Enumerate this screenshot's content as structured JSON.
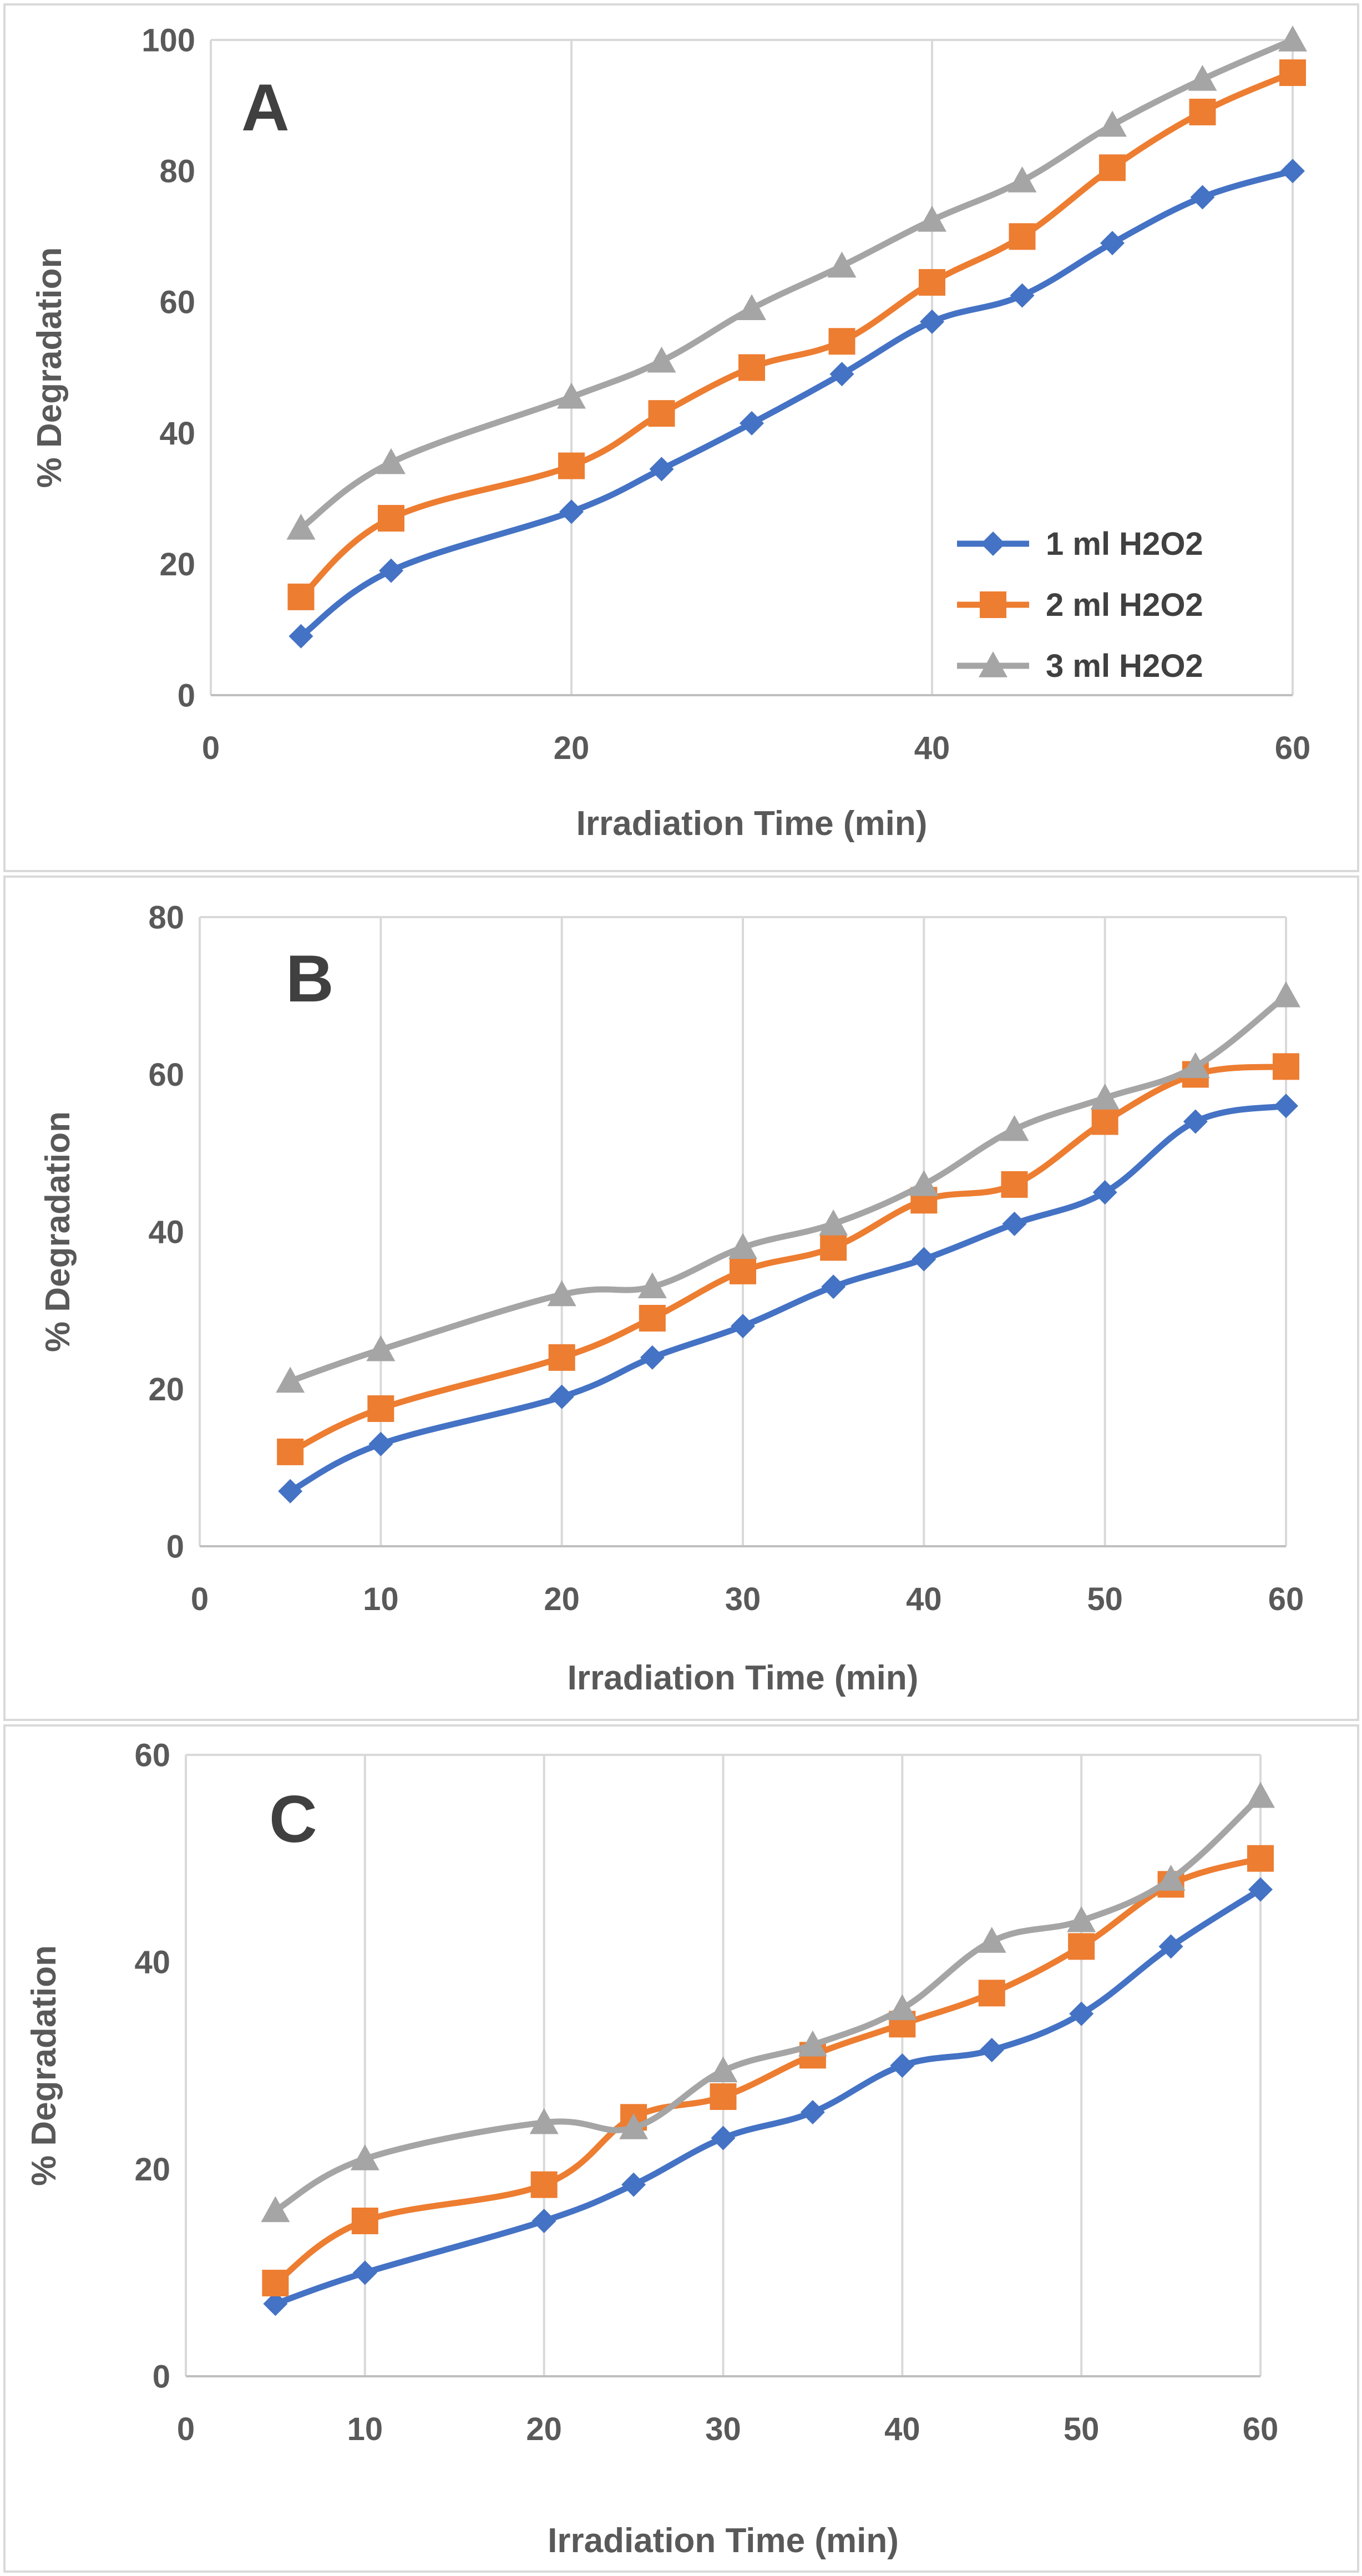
{
  "chart_data": [
    {
      "type": "line",
      "title": "A",
      "xlabel": "Irradiation Time (min)",
      "ylabel": "% Degradation",
      "xlim": [
        0,
        60
      ],
      "ylim": [
        0,
        100
      ],
      "xticks": [
        0,
        20,
        40,
        60
      ],
      "yticks": [
        0,
        20,
        40,
        60,
        80,
        100
      ],
      "x_gridlines": [
        0,
        20,
        40,
        60
      ],
      "legend": "bottom-right",
      "series": [
        {
          "name": "1 ml H2O2",
          "color": "#4472C4",
          "marker": "diamond",
          "x": [
            5,
            10,
            20,
            25,
            30,
            35,
            40,
            45,
            50,
            55,
            60
          ],
          "values": [
            9,
            19,
            28,
            34.5,
            41.5,
            49,
            57,
            61,
            69,
            76,
            80
          ]
        },
        {
          "name": "2 ml H2O2",
          "color": "#ED7D31",
          "marker": "square",
          "x": [
            5,
            10,
            20,
            25,
            30,
            35,
            40,
            45,
            50,
            55,
            60
          ],
          "values": [
            15,
            27,
            35,
            43,
            50,
            54,
            63,
            70,
            80.5,
            89,
            95
          ]
        },
        {
          "name": "3 ml H2O2",
          "color": "#A5A5A5",
          "marker": "triangle",
          "x": [
            5,
            10,
            20,
            25,
            30,
            35,
            40,
            45,
            50,
            55,
            60
          ],
          "values": [
            25.5,
            35.5,
            45.5,
            51,
            59,
            65.5,
            72.5,
            78.5,
            87,
            94,
            100
          ]
        }
      ]
    },
    {
      "type": "line",
      "title": "B",
      "xlabel": "Irradiation Time (min)",
      "ylabel": "% Degradation",
      "xlim": [
        0,
        60
      ],
      "ylim": [
        0,
        80
      ],
      "xticks": [
        0,
        10,
        20,
        30,
        40,
        50,
        60
      ],
      "yticks": [
        0,
        20,
        40,
        60,
        80
      ],
      "x_gridlines": [
        0,
        10,
        20,
        30,
        40,
        50,
        60
      ],
      "series": [
        {
          "name": "1 ml H2O2",
          "color": "#4472C4",
          "marker": "diamond",
          "x": [
            5,
            10,
            20,
            25,
            30,
            35,
            40,
            45,
            50,
            55,
            60
          ],
          "values": [
            7,
            13,
            19,
            24,
            28,
            33,
            36.5,
            41,
            45,
            54,
            56
          ]
        },
        {
          "name": "2 ml H2O2",
          "color": "#ED7D31",
          "marker": "square",
          "x": [
            5,
            10,
            20,
            25,
            30,
            35,
            40,
            45,
            50,
            55,
            60
          ],
          "values": [
            12,
            17.5,
            24,
            29,
            35,
            38,
            44,
            46,
            54,
            60,
            61
          ]
        },
        {
          "name": "3 ml H2O2",
          "color": "#A5A5A5",
          "marker": "triangle",
          "x": [
            5,
            10,
            20,
            25,
            30,
            35,
            40,
            45,
            50,
            55,
            60
          ],
          "values": [
            21,
            25,
            32,
            33,
            38,
            41,
            46,
            53,
            57,
            61,
            70
          ]
        }
      ]
    },
    {
      "type": "line",
      "title": "C",
      "xlabel": "Irradiation Time (min)",
      "ylabel": "% Degradation",
      "xlim": [
        0,
        60
      ],
      "ylim": [
        0,
        60
      ],
      "xticks": [
        0,
        10,
        20,
        30,
        40,
        50,
        60
      ],
      "yticks": [
        0,
        20,
        40,
        60
      ],
      "x_gridlines": [
        0,
        10,
        20,
        30,
        40,
        50,
        60
      ],
      "series": [
        {
          "name": "1 ml H2O2",
          "color": "#4472C4",
          "marker": "diamond",
          "x": [
            5,
            10,
            20,
            25,
            30,
            35,
            40,
            45,
            50,
            55,
            60
          ],
          "values": [
            7,
            10,
            15,
            18.5,
            23,
            25.5,
            30,
            31.5,
            35,
            41.5,
            47
          ]
        },
        {
          "name": "2 ml H2O2",
          "color": "#ED7D31",
          "marker": "square",
          "x": [
            5,
            10,
            20,
            25,
            30,
            35,
            40,
            45,
            50,
            55,
            60
          ],
          "values": [
            9,
            15,
            18.5,
            25,
            27,
            31,
            34,
            37,
            41.5,
            47.5,
            50
          ]
        },
        {
          "name": "3 ml H2O2",
          "color": "#A5A5A5",
          "marker": "triangle",
          "x": [
            5,
            10,
            20,
            25,
            30,
            35,
            40,
            45,
            50,
            55,
            60
          ],
          "values": [
            16,
            21,
            24.5,
            24,
            29.5,
            32,
            35.5,
            42,
            44,
            48,
            56
          ]
        }
      ]
    }
  ]
}
